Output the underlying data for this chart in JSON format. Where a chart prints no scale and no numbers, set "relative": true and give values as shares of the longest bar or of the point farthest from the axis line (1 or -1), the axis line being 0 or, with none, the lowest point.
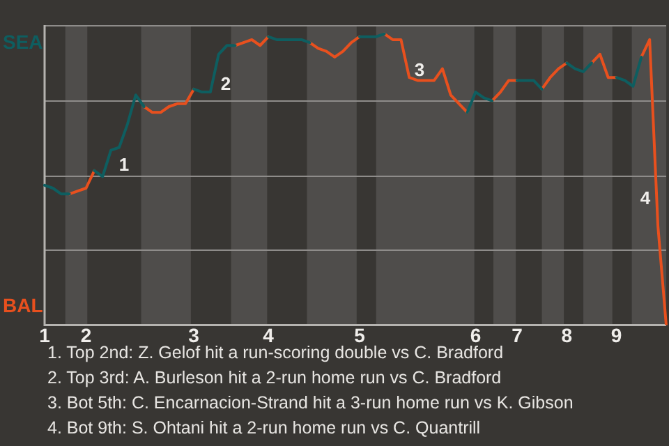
{
  "chart_data": {
    "type": "line",
    "relative": true,
    "categories": [
      "1",
      null,
      null,
      null,
      null,
      "2",
      null,
      null,
      null,
      null,
      null,
      null,
      null,
      null,
      null,
      null,
      null,
      null,
      "3",
      null,
      null,
      null,
      null,
      null,
      null,
      null,
      null,
      "4",
      null,
      null,
      null,
      null,
      null,
      null,
      null,
      null,
      null,
      null,
      "5",
      null,
      null,
      null,
      null,
      null,
      null,
      null,
      null,
      null,
      null,
      null,
      null,
      null,
      "6",
      null,
      null,
      null,
      null,
      "7",
      null,
      null,
      null,
      null,
      null,
      "8",
      null,
      null,
      null,
      null,
      null,
      "9",
      null,
      null,
      null,
      null,
      null,
      null
    ],
    "grid": "y",
    "series": [
      {
        "color": "#0e5e60",
        "values": [
          0.48,
          0.47,
          0.45,
          0.45,
          null,
          null,
          0.53,
          0.51,
          0.6,
          0.61,
          0.69,
          0.79,
          0.75,
          null,
          null,
          null,
          null,
          null,
          0.81,
          0.8,
          0.8,
          0.93,
          0.96,
          0.96,
          null,
          null,
          null,
          0.99,
          0.98,
          0.98,
          0.98,
          0.98,
          0.97,
          null,
          null,
          null,
          null,
          null,
          0.99,
          0.99,
          0.99,
          1,
          null,
          null,
          null,
          null,
          null,
          null,
          null,
          null,
          null,
          0.73,
          0.8,
          0.78,
          0.77,
          null,
          null,
          0.84,
          0.84,
          0.84,
          0.81,
          null,
          null,
          0.9,
          0.88,
          0.87,
          0.9,
          null,
          null,
          0.85,
          0.84,
          0.82,
          0.92,
          null,
          null,
          null
        ]
      },
      {
        "color": "#e8501e",
        "values": [
          null,
          null,
          null,
          0.45,
          0.46,
          0.47,
          0.53,
          null,
          null,
          null,
          null,
          null,
          0.75,
          0.73,
          0.73,
          0.75,
          0.76,
          0.76,
          0.81,
          null,
          null,
          null,
          null,
          0.96,
          0.97,
          0.98,
          0.96,
          0.99,
          null,
          null,
          null,
          null,
          0.97,
          0.95,
          0.94,
          0.92,
          0.94,
          0.97,
          0.99,
          null,
          null,
          1,
          0.98,
          0.98,
          0.85,
          0.84,
          0.84,
          0.84,
          0.88,
          0.79,
          0.76,
          0.73,
          null,
          null,
          0.77,
          0.8,
          0.84,
          0.84,
          null,
          null,
          0.81,
          0.85,
          0.88,
          0.9,
          null,
          null,
          0.9,
          0.93,
          0.85,
          0.85,
          null,
          null,
          0.92,
          0.98,
          0.34,
          0
        ]
      }
    ],
    "annotations": [
      "SEA",
      "BAL",
      "1",
      "2",
      "3",
      "4",
      "1. Top 2nd: Z. Gelof hit a run-scoring double vs C. Bradford",
      "2. Top 3rd: A. Burleson hit a 2-run home run vs C. Bradford",
      "3. Bot 5th: C. Encarnacion-Strand hit a 3-run home run vs K. Gibson",
      "4. Bot 9th: S. Ohtani hit a 2-run home run vs C. Quantrill"
    ]
  }
}
